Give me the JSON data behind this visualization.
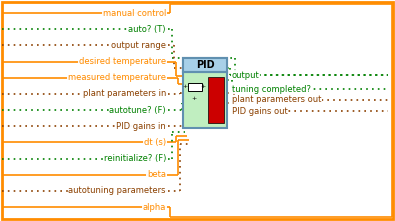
{
  "bg_color": "#ffffff",
  "outer_border_color": "#FF8C00",
  "orange": "#FF8C00",
  "green": "#008000",
  "brown": "#8B4000",
  "pid_fill": "#c0eec0",
  "pid_border": "#6090b0",
  "pid_label_bg": "#a8d0e8",
  "left_labels": [
    {
      "text": "manual control",
      "color": "#FF8C00",
      "style": "solid"
    },
    {
      "text": "auto? (T)",
      "color": "#008000",
      "style": "dotted"
    },
    {
      "text": "output range",
      "color": "#8B4000",
      "style": "dotted"
    },
    {
      "text": "desired temperature",
      "color": "#FF8C00",
      "style": "solid"
    },
    {
      "text": "measured temperature",
      "color": "#FF8C00",
      "style": "solid"
    },
    {
      "text": "plant parameters in",
      "color": "#8B4000",
      "style": "dotted"
    },
    {
      "text": "autotune? (F)",
      "color": "#008000",
      "style": "dotted"
    },
    {
      "text": "PID gains in",
      "color": "#8B4000",
      "style": "dotted"
    },
    {
      "text": "dt (s)",
      "color": "#FF8C00",
      "style": "solid"
    },
    {
      "text": "reinitialize? (F)",
      "color": "#008000",
      "style": "dotted"
    },
    {
      "text": "beta",
      "color": "#FF8C00",
      "style": "solid"
    },
    {
      "text": "autotuning parameters",
      "color": "#8B4000",
      "style": "dotted"
    },
    {
      "text": "alpha",
      "color": "#FF8C00",
      "style": "solid"
    }
  ],
  "right_labels": [
    {
      "text": "output",
      "color": "#008000",
      "style": "dotted"
    },
    {
      "text": "tuning completed?",
      "color": "#008000",
      "style": "dotted"
    },
    {
      "text": "plant parameters out",
      "color": "#8B4000",
      "style": "dotted"
    },
    {
      "text": "PID gains out",
      "color": "#8B4000",
      "style": "dotted"
    }
  ]
}
